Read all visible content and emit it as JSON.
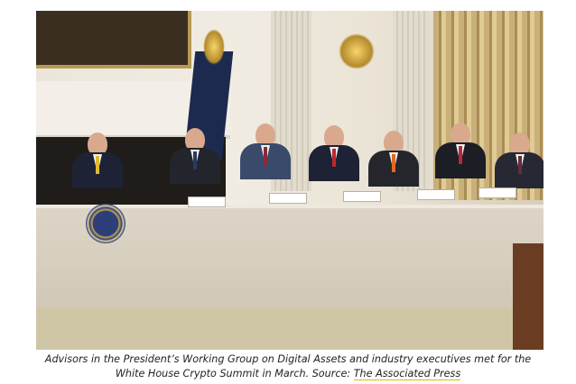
{
  "photo": {
    "alt_semantic": "summit-meeting-photo"
  },
  "caption": {
    "line1": "Advisors in the President’s Working Group on Digital Assets and industry executives met for the",
    "line2": "White House Crypto Summit in March. Source: ",
    "source_link": "The Associated Press"
  },
  "colors": {
    "link_underline": "#f0b400",
    "caption_text": "#222222"
  }
}
